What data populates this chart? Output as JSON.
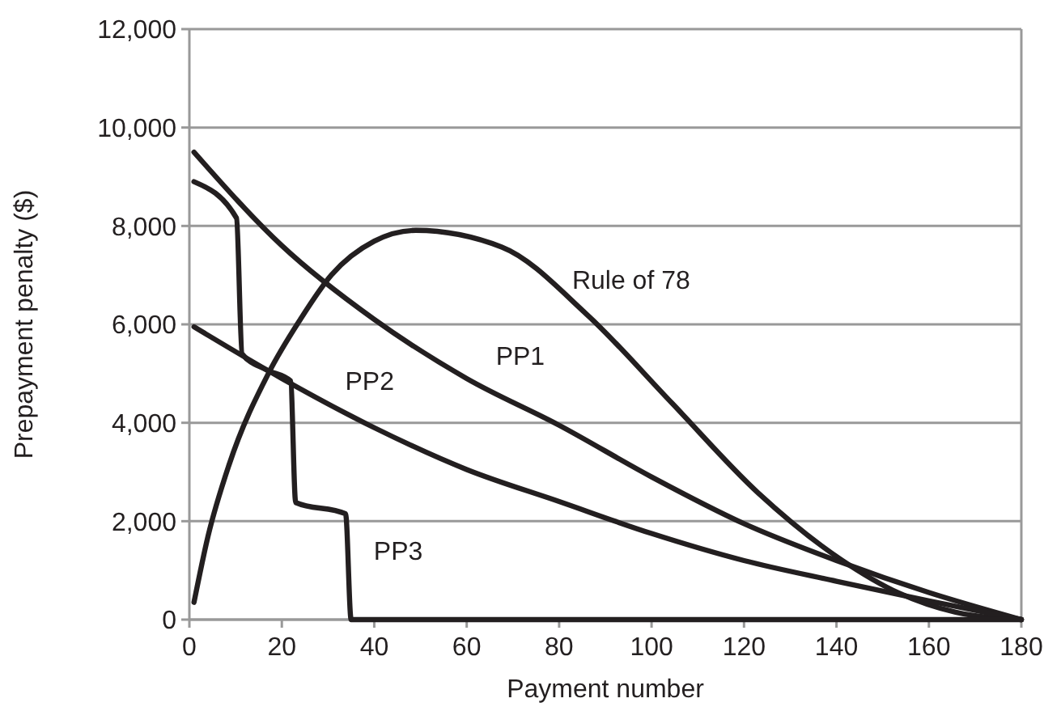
{
  "chart_data": {
    "type": "line",
    "xlabel": "Payment number",
    "ylabel": "Prepayment penalty ($)",
    "xlim": [
      0,
      180
    ],
    "ylim": [
      0,
      12000
    ],
    "xticks": [
      0,
      20,
      40,
      60,
      80,
      100,
      120,
      140,
      160,
      180
    ],
    "yticks": [
      {
        "value": 0,
        "label": "0"
      },
      {
        "value": 2000,
        "label": "2,000"
      },
      {
        "value": 4000,
        "label": "4,000"
      },
      {
        "value": 6000,
        "label": "6,000"
      },
      {
        "value": 8000,
        "label": "8,000"
      },
      {
        "value": 10000,
        "label": "10,000"
      },
      {
        "value": 12000,
        "label": "12,000"
      }
    ],
    "grid": "y",
    "marker": "none",
    "line_style": "solid",
    "series": [
      {
        "name": "Rule of 78",
        "color": "#231f20",
        "x": [
          1,
          4,
          8.6,
          17.2,
          24,
          30.7,
          40,
          49,
          67.6,
          86,
          104.4,
          123,
          141,
          153.5,
          165.8,
          180
        ],
        "values": [
          350,
          1680,
          3150,
          5020,
          6100,
          7000,
          7690,
          7910,
          7570,
          6200,
          4400,
          2580,
          1220,
          540,
          150,
          0
        ]
      },
      {
        "name": "PP1",
        "color": "#231f20",
        "x": [
          1,
          20,
          40,
          60,
          80,
          100,
          120,
          140,
          160,
          180
        ],
        "values": [
          9500,
          7600,
          6100,
          4900,
          3950,
          2900,
          1950,
          1200,
          550,
          0
        ]
      },
      {
        "name": "PP2",
        "color": "#231f20",
        "x": [
          1,
          20,
          40,
          60,
          80,
          100,
          120,
          140,
          160,
          180
        ],
        "values": [
          5950,
          4900,
          3900,
          3050,
          2400,
          1750,
          1200,
          780,
          380,
          0
        ]
      },
      {
        "name": "PP3",
        "color": "#231f20",
        "x": [
          1,
          10.2,
          11.4,
          16.6,
          21.9,
          23,
          33.8,
          35,
          180
        ],
        "values": [
          8900,
          8160,
          5400,
          5080,
          4850,
          2380,
          2150,
          0,
          0
        ]
      }
    ]
  }
}
